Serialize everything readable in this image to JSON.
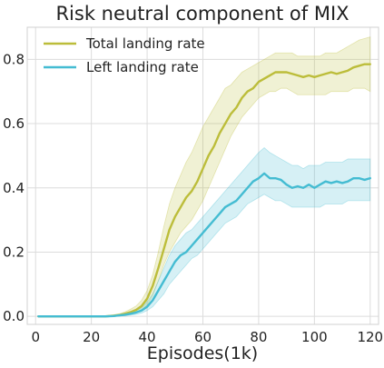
{
  "chart_data": {
    "type": "line",
    "title": "Risk neutral component of MIX",
    "xlabel": "Episodes(1k)",
    "ylabel": "",
    "xlim": [
      -3,
      123
    ],
    "ylim": [
      -0.025,
      0.9
    ],
    "xticks": [
      0,
      20,
      40,
      60,
      80,
      100,
      120
    ],
    "yticks": [
      0.0,
      0.2,
      0.4,
      0.6,
      0.8
    ],
    "xtick_labels": [
      "0",
      "20",
      "40",
      "60",
      "80",
      "100",
      "120"
    ],
    "ytick_labels": [
      "0.0",
      "0.2",
      "0.4",
      "0.6",
      "0.8"
    ],
    "grid": true,
    "legend_position": "top-left",
    "series": [
      {
        "name": "Total landing rate",
        "color": "#bcbd3a",
        "x": [
          1,
          10,
          20,
          25,
          28,
          30,
          32,
          34,
          36,
          38,
          40,
          42,
          44,
          46,
          48,
          50,
          52,
          54,
          56,
          58,
          60,
          62,
          64,
          66,
          68,
          70,
          72,
          74,
          76,
          78,
          80,
          82,
          84,
          86,
          88,
          90,
          92,
          94,
          96,
          98,
          100,
          102,
          104,
          106,
          108,
          110,
          112,
          114,
          116,
          118,
          120
        ],
        "y": [
          0,
          0,
          0,
          0,
          0.002,
          0.004,
          0.008,
          0.013,
          0.02,
          0.032,
          0.055,
          0.095,
          0.15,
          0.21,
          0.27,
          0.31,
          0.34,
          0.37,
          0.39,
          0.42,
          0.46,
          0.5,
          0.53,
          0.57,
          0.6,
          0.63,
          0.65,
          0.68,
          0.7,
          0.71,
          0.73,
          0.74,
          0.75,
          0.76,
          0.76,
          0.76,
          0.755,
          0.75,
          0.745,
          0.75,
          0.745,
          0.75,
          0.755,
          0.76,
          0.755,
          0.76,
          0.765,
          0.775,
          0.78,
          0.785,
          0.785
        ],
        "lower": [
          0,
          0,
          0,
          0,
          0,
          0.001,
          0.003,
          0.007,
          0.012,
          0.02,
          0.035,
          0.065,
          0.11,
          0.16,
          0.2,
          0.23,
          0.26,
          0.28,
          0.3,
          0.33,
          0.36,
          0.4,
          0.44,
          0.48,
          0.52,
          0.56,
          0.59,
          0.62,
          0.64,
          0.66,
          0.68,
          0.69,
          0.7,
          0.7,
          0.71,
          0.71,
          0.7,
          0.69,
          0.69,
          0.69,
          0.69,
          0.69,
          0.69,
          0.7,
          0.7,
          0.7,
          0.7,
          0.71,
          0.71,
          0.71,
          0.7
        ],
        "upper": [
          0,
          0,
          0,
          0.001,
          0.005,
          0.008,
          0.014,
          0.022,
          0.032,
          0.05,
          0.08,
          0.13,
          0.2,
          0.28,
          0.35,
          0.4,
          0.44,
          0.48,
          0.51,
          0.55,
          0.59,
          0.62,
          0.65,
          0.68,
          0.71,
          0.72,
          0.74,
          0.76,
          0.77,
          0.78,
          0.79,
          0.8,
          0.81,
          0.82,
          0.82,
          0.82,
          0.82,
          0.81,
          0.81,
          0.81,
          0.81,
          0.81,
          0.82,
          0.82,
          0.82,
          0.83,
          0.84,
          0.85,
          0.86,
          0.865,
          0.87
        ]
      },
      {
        "name": "Left landing rate",
        "color": "#44bcd2",
        "x": [
          1,
          10,
          20,
          25,
          28,
          30,
          32,
          34,
          36,
          38,
          40,
          42,
          44,
          46,
          48,
          50,
          52,
          54,
          56,
          58,
          60,
          62,
          64,
          66,
          68,
          70,
          72,
          74,
          76,
          78,
          80,
          82,
          84,
          86,
          88,
          90,
          92,
          94,
          96,
          98,
          100,
          102,
          104,
          106,
          108,
          110,
          112,
          114,
          116,
          118,
          120
        ],
        "y": [
          0,
          0,
          0,
          0,
          0.001,
          0.003,
          0.005,
          0.008,
          0.012,
          0.018,
          0.03,
          0.05,
          0.08,
          0.11,
          0.14,
          0.17,
          0.19,
          0.2,
          0.22,
          0.24,
          0.26,
          0.28,
          0.3,
          0.32,
          0.34,
          0.35,
          0.36,
          0.38,
          0.4,
          0.42,
          0.43,
          0.445,
          0.43,
          0.43,
          0.425,
          0.41,
          0.4,
          0.405,
          0.4,
          0.41,
          0.4,
          0.41,
          0.42,
          0.415,
          0.42,
          0.415,
          0.42,
          0.43,
          0.43,
          0.425,
          0.43
        ],
        "lower": [
          0,
          0,
          0,
          0,
          0,
          0.001,
          0.002,
          0.004,
          0.006,
          0.01,
          0.018,
          0.03,
          0.05,
          0.07,
          0.1,
          0.12,
          0.14,
          0.16,
          0.18,
          0.19,
          0.21,
          0.23,
          0.25,
          0.27,
          0.29,
          0.3,
          0.31,
          0.33,
          0.35,
          0.36,
          0.37,
          0.38,
          0.37,
          0.36,
          0.36,
          0.35,
          0.34,
          0.34,
          0.34,
          0.34,
          0.34,
          0.34,
          0.35,
          0.35,
          0.35,
          0.35,
          0.36,
          0.36,
          0.36,
          0.36,
          0.36
        ],
        "upper": [
          0,
          0,
          0,
          0.001,
          0.003,
          0.006,
          0.009,
          0.013,
          0.018,
          0.027,
          0.045,
          0.07,
          0.11,
          0.15,
          0.19,
          0.22,
          0.24,
          0.26,
          0.27,
          0.29,
          0.31,
          0.33,
          0.35,
          0.37,
          0.39,
          0.41,
          0.43,
          0.45,
          0.47,
          0.49,
          0.51,
          0.525,
          0.51,
          0.5,
          0.49,
          0.48,
          0.47,
          0.47,
          0.46,
          0.47,
          0.47,
          0.47,
          0.48,
          0.48,
          0.48,
          0.48,
          0.49,
          0.49,
          0.49,
          0.49,
          0.49
        ]
      }
    ]
  }
}
